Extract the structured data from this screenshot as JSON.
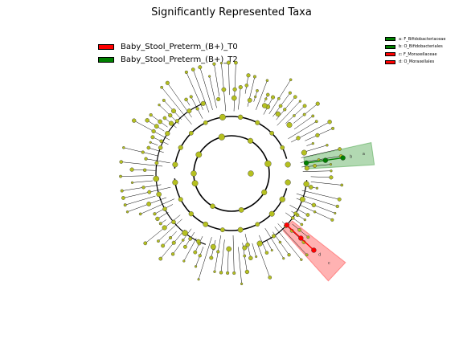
{
  "title": "Significantly Represented Taxa",
  "legend": [
    {
      "label": "Baby_Stool_Preterm_(B+)_T0",
      "color": "#ff0000"
    },
    {
      "label": "Baby_Stool_Preterm_(B+)_T2",
      "color": "#008000"
    }
  ],
  "clade_legend": [
    {
      "label": "a: F_Bifidobacteriaceae",
      "color": "#008000"
    },
    {
      "label": "b: O_Bifidobacteriales",
      "color": "#008000"
    },
    {
      "label": "c: F_Moraxellaceae",
      "color": "#ff0000"
    },
    {
      "label": "d: O_Moraxellales",
      "color": "#ff0000"
    }
  ],
  "clade_markers": {
    "green": [
      "a",
      "b"
    ],
    "red": [
      "c",
      "d"
    ]
  },
  "colors": {
    "node": "#b5c020",
    "red": "#ff0000",
    "green": "#008000",
    "line": "#000000"
  }
}
